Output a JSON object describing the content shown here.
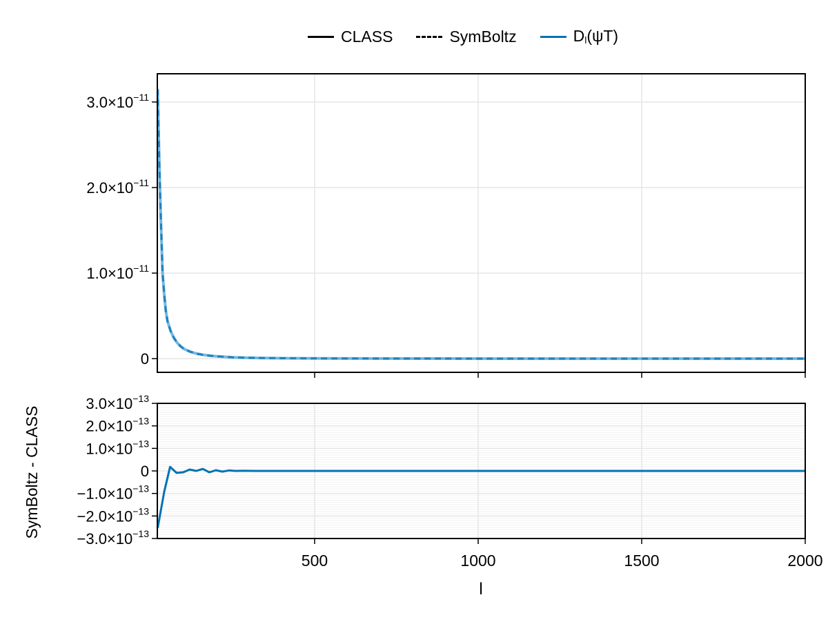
{
  "legend": {
    "items": [
      {
        "label": "CLASS",
        "style": "solid",
        "color": "#000000"
      },
      {
        "label": "SymBoltz",
        "style": "dashed",
        "color": "#000000"
      },
      {
        "label_main": "D",
        "label_sub": "l",
        "label_rest": "(ψT)",
        "label": "Dl(ψT)",
        "style": "solid",
        "color": "#0072b2"
      }
    ]
  },
  "colors": {
    "accent": "#0072b2",
    "accent_light": "#4a9fd0",
    "grid": "#e5e5e5",
    "minor_grid": "#f2f2f2",
    "frame": "#000000"
  },
  "chart_data": [
    {
      "type": "line",
      "title": "",
      "xlabel": "",
      "ylabel": "",
      "xlim": [
        19,
        2000
      ],
      "ylim": [
        -1.6e-12,
        3.33e-11
      ],
      "grid": true,
      "legend_position": "top-center",
      "xticks": [
        500,
        1000,
        1500,
        2000
      ],
      "xtick_labels_visible": false,
      "yticks": [
        0,
        1e-11,
        2e-11,
        3e-11
      ],
      "ytick_labels": [
        "0",
        "1.0×10",
        "2.0×10",
        "3.0×10"
      ],
      "ytick_exponents": [
        "",
        "−11",
        "−11",
        "−11"
      ],
      "x": [
        20,
        25,
        30,
        35,
        40,
        45,
        50,
        60,
        70,
        80,
        90,
        100,
        120,
        140,
        160,
        180,
        200,
        250,
        300,
        350,
        400,
        500,
        600,
        800,
        1000,
        1200,
        1500,
        1800,
        2000
      ],
      "series": [
        {
          "name": "CLASS",
          "style": "solid",
          "color": "#4a9fd0",
          "opacity": 0.75,
          "values": [
            3.15e-11,
            2.3e-11,
            1.6e-11,
            1e-11,
            7.5e-12,
            5.6e-12,
            4.4e-12,
            3.2e-12,
            2.4e-12,
            1.85e-12,
            1.45e-12,
            1.15e-12,
            8e-13,
            5.8e-13,
            4.4e-13,
            3.4e-13,
            2.7e-13,
            1.6e-13,
            1e-13,
            7e-14,
            5e-14,
            3e-14,
            2e-14,
            1e-14,
            6e-15,
            4e-15,
            2e-15,
            1e-15,
            1e-15
          ]
        },
        {
          "name": "SymBoltz",
          "style": "dashed",
          "color": "#1f82c0",
          "values": [
            3.15e-11,
            2.3e-11,
            1.6e-11,
            1e-11,
            7.5e-12,
            5.6e-12,
            4.4e-12,
            3.2e-12,
            2.4e-12,
            1.85e-12,
            1.45e-12,
            1.15e-12,
            8e-13,
            5.8e-13,
            4.4e-13,
            3.4e-13,
            2.7e-13,
            1.6e-13,
            1e-13,
            7e-14,
            5e-14,
            3e-14,
            2e-14,
            1e-14,
            6e-15,
            4e-15,
            2e-15,
            1e-15,
            1e-15
          ]
        }
      ]
    },
    {
      "type": "line",
      "title": "",
      "xlabel": "l",
      "ylabel": "SymBoltz - CLASS",
      "xlim": [
        19,
        2000
      ],
      "ylim": [
        -3e-13,
        3e-13
      ],
      "grid": true,
      "minor_grid": true,
      "xticks": [
        500,
        1000,
        1500,
        2000
      ],
      "xtick_labels": [
        "500",
        "1000",
        "1500",
        "2000"
      ],
      "yticks": [
        -3e-13,
        -2e-13,
        -1e-13,
        0,
        1e-13,
        2e-13,
        3e-13
      ],
      "ytick_labels": [
        "−3.0×10",
        "−2.0×10",
        "−1.0×10",
        "0",
        "1.0×10",
        "2.0×10",
        "3.0×10"
      ],
      "ytick_exponents": [
        "−13",
        "−13",
        "−13",
        "",
        "−13",
        "−13",
        "−13"
      ],
      "x": [
        20,
        40,
        58,
        78,
        98,
        118,
        138,
        158,
        178,
        198,
        218,
        238,
        258,
        280,
        320,
        400,
        500,
        700,
        1000,
        1500,
        2000
      ],
      "series": [
        {
          "name": "SymBoltz - CLASS",
          "style": "solid",
          "color": "#0072b2",
          "values": [
            -2.54e-13,
            -9.2e-14,
            1.8e-14,
            -9e-15,
            -6e-15,
            6e-15,
            0.0,
            9e-15,
            -6e-15,
            3e-15,
            -3e-15,
            2e-15,
            0.0,
            1e-15,
            0.0,
            0.0,
            0.0,
            0.0,
            0.0,
            0.0,
            0.0
          ]
        }
      ]
    }
  ]
}
